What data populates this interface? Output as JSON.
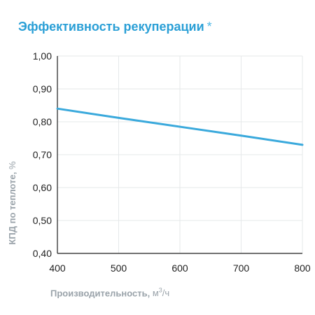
{
  "header": {
    "title": "Эффективность рекуперации",
    "asterisk": "*"
  },
  "chart_data": {
    "type": "line",
    "title": "Эффективность рекуперации",
    "xlabel_main": "Производительность,",
    "xlabel_unit_pre": "м",
    "xlabel_unit_sup": "3",
    "xlabel_unit_post": "/ч",
    "ylabel_main": "КПД по теплоте,",
    "ylabel_unit": "%",
    "xlim": [
      400,
      800
    ],
    "ylim": [
      0.4,
      1.0
    ],
    "x_ticks": [
      400,
      500,
      600,
      700,
      800
    ],
    "x_tick_labels": [
      "400",
      "500",
      "600",
      "700",
      "800"
    ],
    "y_ticks": [
      0.4,
      0.5,
      0.6,
      0.7,
      0.8,
      0.9,
      1.0
    ],
    "y_tick_labels": [
      "0,40",
      "0,50",
      "0,60",
      "0,70",
      "0,80",
      "0,90",
      "1,00"
    ],
    "grid": true,
    "series": [
      {
        "color": "#3aa9dc",
        "x": [
          400,
          500,
          600,
          700,
          800
        ],
        "y": [
          0.84,
          0.812,
          0.785,
          0.758,
          0.73
        ]
      }
    ]
  }
}
